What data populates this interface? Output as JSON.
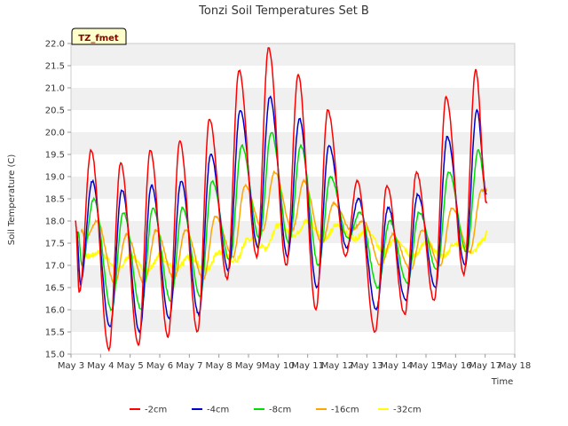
{
  "chart_data": {
    "type": "line",
    "title": "Tonzi Soil Temperatures Set B",
    "xlabel": "Time",
    "ylabel": "Soil Temperature (C)",
    "badge": "TZ_fmet",
    "ylim": [
      15.0,
      22.0
    ],
    "yticks": [
      "15.0",
      "15.5",
      "16.0",
      "16.5",
      "17.0",
      "17.5",
      "18.0",
      "18.5",
      "19.0",
      "19.5",
      "20.0",
      "20.5",
      "21.0",
      "21.5",
      "22.0"
    ],
    "xlim_days": [
      3,
      18
    ],
    "xticks": [
      "May 3",
      "May 4",
      "May 5",
      "May 6",
      "May 7",
      "May 8",
      "May 9",
      "May 10",
      "May 11",
      "May 12",
      "May 13",
      "May 14",
      "May 15",
      "May 16",
      "May 17",
      "May 18"
    ],
    "grid": "horizontal bands",
    "legend_position": "bottom-center",
    "series": [
      {
        "name": "-2cm",
        "color": "#ff0000",
        "daily_max": [
          19.6,
          19.3,
          19.6,
          19.8,
          20.3,
          21.4,
          21.9,
          21.3,
          20.5,
          18.9,
          18.8,
          19.1,
          20.8,
          21.4
        ],
        "daily_min": [
          16.4,
          15.1,
          15.2,
          15.4,
          15.5,
          16.7,
          17.2,
          17.0,
          16.0,
          17.2,
          15.5,
          15.9,
          16.2,
          16.8
        ],
        "end": 18.4
      },
      {
        "name": "-4cm",
        "color": "#0000cc",
        "daily_max": [
          18.9,
          18.7,
          18.8,
          18.9,
          19.5,
          20.5,
          20.8,
          20.3,
          19.7,
          18.5,
          18.3,
          18.6,
          19.9,
          20.5
        ],
        "daily_min": [
          16.6,
          15.6,
          15.5,
          15.8,
          15.9,
          16.9,
          17.4,
          17.2,
          16.5,
          17.4,
          16.0,
          16.2,
          16.5,
          17.0
        ],
        "end": 18.6
      },
      {
        "name": "-8cm",
        "color": "#00dd00",
        "daily_max": [
          18.5,
          18.2,
          18.3,
          18.3,
          18.9,
          19.7,
          20.0,
          19.7,
          19.0,
          18.2,
          18.0,
          18.2,
          19.1,
          19.6
        ],
        "daily_min": [
          17.0,
          16.0,
          16.0,
          16.2,
          16.3,
          17.1,
          17.6,
          17.5,
          17.0,
          17.6,
          16.5,
          16.6,
          16.9,
          17.3
        ],
        "end": 18.6
      },
      {
        "name": "-16cm",
        "color": "#ffa500",
        "daily_max": [
          18.0,
          17.7,
          17.8,
          17.8,
          18.1,
          18.8,
          19.1,
          18.9,
          18.4,
          18.0,
          17.7,
          17.8,
          18.3,
          18.7
        ],
        "daily_min": [
          17.6,
          16.6,
          16.6,
          16.7,
          16.7,
          17.2,
          17.8,
          17.8,
          17.5,
          17.8,
          17.0,
          16.9,
          17.0,
          17.3
        ],
        "end": 18.7
      },
      {
        "name": "-32cm",
        "color": "#ffff00",
        "daily_max": [
          17.3,
          17.2,
          17.2,
          17.2,
          17.3,
          17.6,
          17.9,
          18.0,
          17.9,
          17.8,
          17.6,
          17.5,
          17.5,
          17.6
        ],
        "daily_min": [
          17.2,
          16.9,
          16.9,
          16.9,
          16.9,
          17.1,
          17.4,
          17.7,
          17.6,
          17.6,
          17.3,
          17.2,
          17.2,
          17.3
        ],
        "end": 17.75
      }
    ]
  }
}
